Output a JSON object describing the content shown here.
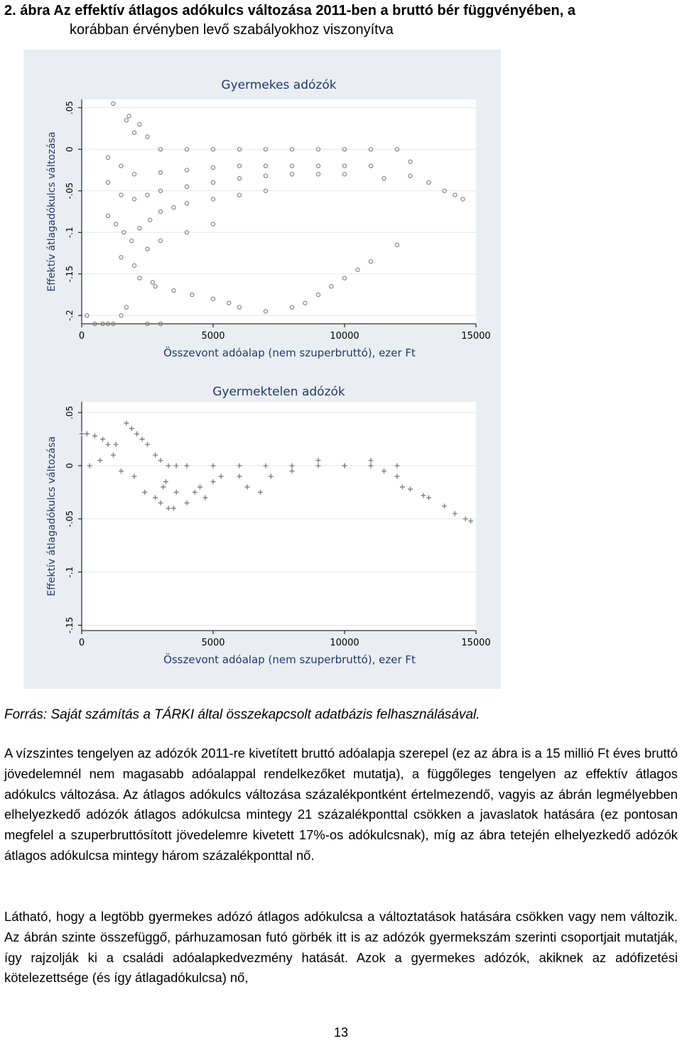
{
  "caption": {
    "line1": "2. ábra Az effektív átlagos adókulcs változása 2011-ben a bruttó bér függvényében, a",
    "line2": "korábban érvényben levő szabályokhoz viszonyítva"
  },
  "source_note": "Forrás: Saját számítás a TÁRKI által összekapcsolt adatbázis felhasználásával.",
  "paragraphs": [
    "A vízszintes tengelyen az adózók 2011-re kivetített bruttó adóalapja szerepel (ez az ábra is a 15 millió Ft éves bruttó jövedelemnél nem magasabb adóalappal rendelkezőket mutatja), a függőleges tengelyen az effektív átlagos adókulcs változása. Az átlagos adókulcs változása százalékpontként értelmezendő, vagyis az ábrán legmélyebben elhelyezkedő adózók átlagos adókulcsa mintegy 21 százalékponttal csökken a javaslatok hatására (ez pontosan megfelel a szuperbruttósított jövedelemre kivetett 17%-os adókulcsnak), míg az ábra tetején elhelyezkedő adózók átlagos adókulcsa mintegy három százalékponttal nő.",
    "Látható, hogy a legtöbb gyermekes adózó átlagos adókulcsa a változtatások hatására csökken vagy nem változik. Az ábrán szinte összefüggő, párhuzamosan futó görbék itt is az adózók gyermekszám szerinti csoportjait mutatják, így rajzolják ki a családi adóalapkedvezmény hatását. Azok a gyermekes adózók, akiknek az adófizetési kötelezettsége (és így átlagadókulcsa) nő,"
  ],
  "page_number": "13",
  "chart_data": [
    {
      "type": "scatter",
      "title": "Gyermekes adózók",
      "xlabel": "Összevont adóalap (nem szuperbruttó), ezer Ft",
      "ylabel": "Effektív átlagadókulcs változása",
      "xlim": [
        0,
        15000
      ],
      "ylim": [
        -0.21,
        0.06
      ],
      "xticks": [
        0,
        5000,
        10000,
        15000
      ],
      "xtick_labels": [
        "0",
        "5000",
        "10000",
        "15000"
      ],
      "yticks": [
        -0.2,
        -0.15,
        -0.1,
        -0.05,
        0,
        0.05
      ],
      "ytick_labels": [
        "-.2",
        "-.15",
        "-.1",
        "-.05",
        "0",
        ".05"
      ],
      "marker": "hollow-circle",
      "color": "#7a7a7a",
      "grid": true,
      "points": [
        [
          1200,
          0.055
        ],
        [
          1700,
          0.035
        ],
        [
          1800,
          0.04
        ],
        [
          2000,
          0.02
        ],
        [
          2200,
          0.03
        ],
        [
          2500,
          0.015
        ],
        [
          3000,
          0.0
        ],
        [
          4000,
          0.0
        ],
        [
          5000,
          0.0
        ],
        [
          6000,
          0.0
        ],
        [
          7000,
          0.0
        ],
        [
          8000,
          0.0
        ],
        [
          9000,
          0.0
        ],
        [
          10000,
          0.0
        ],
        [
          11000,
          0.0
        ],
        [
          12000,
          0.0
        ],
        [
          12500,
          -0.015
        ],
        [
          13200,
          -0.04
        ],
        [
          13800,
          -0.05
        ],
        [
          14200,
          -0.055
        ],
        [
          14500,
          -0.06
        ],
        [
          1000,
          -0.01
        ],
        [
          1500,
          -0.02
        ],
        [
          2000,
          -0.03
        ],
        [
          3000,
          -0.028
        ],
        [
          4000,
          -0.025
        ],
        [
          5000,
          -0.022
        ],
        [
          6000,
          -0.02
        ],
        [
          7000,
          -0.02
        ],
        [
          8000,
          -0.02
        ],
        [
          9000,
          -0.02
        ],
        [
          10000,
          -0.02
        ],
        [
          11000,
          -0.02
        ],
        [
          11500,
          -0.035
        ],
        [
          12500,
          -0.032
        ],
        [
          1000,
          -0.04
        ],
        [
          1500,
          -0.055
        ],
        [
          2000,
          -0.06
        ],
        [
          2500,
          -0.055
        ],
        [
          3000,
          -0.05
        ],
        [
          4000,
          -0.045
        ],
        [
          5000,
          -0.04
        ],
        [
          6000,
          -0.035
        ],
        [
          7000,
          -0.032
        ],
        [
          8000,
          -0.03
        ],
        [
          9000,
          -0.03
        ],
        [
          10000,
          -0.03
        ],
        [
          1000,
          -0.08
        ],
        [
          1300,
          -0.09
        ],
        [
          1600,
          -0.1
        ],
        [
          1900,
          -0.11
        ],
        [
          2200,
          -0.095
        ],
        [
          2600,
          -0.085
        ],
        [
          3000,
          -0.075
        ],
        [
          3500,
          -0.07
        ],
        [
          4000,
          -0.065
        ],
        [
          5000,
          -0.06
        ],
        [
          6000,
          -0.055
        ],
        [
          7000,
          -0.05
        ],
        [
          1500,
          -0.13
        ],
        [
          2000,
          -0.14
        ],
        [
          2500,
          -0.12
        ],
        [
          3000,
          -0.11
        ],
        [
          4000,
          -0.1
        ],
        [
          5000,
          -0.09
        ],
        [
          2200,
          -0.155
        ],
        [
          2800,
          -0.165
        ],
        [
          3500,
          -0.17
        ],
        [
          4200,
          -0.175
        ],
        [
          5000,
          -0.18
        ],
        [
          5600,
          -0.185
        ],
        [
          6000,
          -0.19
        ],
        [
          7000,
          -0.195
        ],
        [
          8000,
          -0.19
        ],
        [
          8500,
          -0.185
        ],
        [
          9000,
          -0.175
        ],
        [
          9500,
          -0.165
        ],
        [
          10000,
          -0.155
        ],
        [
          10500,
          -0.145
        ],
        [
          11000,
          -0.135
        ],
        [
          12000,
          -0.115
        ],
        [
          200,
          -0.2
        ],
        [
          500,
          -0.21
        ],
        [
          800,
          -0.21
        ],
        [
          1000,
          -0.21
        ],
        [
          1200,
          -0.21
        ],
        [
          1500,
          -0.2
        ],
        [
          2500,
          -0.21
        ],
        [
          3000,
          -0.21
        ],
        [
          2700,
          -0.16
        ],
        [
          1700,
          -0.19
        ]
      ]
    },
    {
      "type": "scatter",
      "title": "Gyermektelen adózók",
      "xlabel": "Összevont adóalap (nem szuperbruttó), ezer Ft",
      "ylabel": "Effektív átlagadókulcs változása",
      "xlim": [
        0,
        15000
      ],
      "ylim": [
        -0.155,
        0.06
      ],
      "xticks": [
        0,
        5000,
        10000,
        15000
      ],
      "xtick_labels": [
        "0",
        "5000",
        "10000",
        "15000"
      ],
      "yticks": [
        -0.15,
        -0.1,
        -0.05,
        0,
        0.05
      ],
      "ytick_labels": [
        "-.15",
        "-.1",
        "-.05",
        "0",
        ".05"
      ],
      "marker": "plus",
      "color": "#7a7a7a",
      "grid": true,
      "points": [
        [
          0,
          0.03
        ],
        [
          200,
          0.03
        ],
        [
          500,
          0.028
        ],
        [
          800,
          0.025
        ],
        [
          1000,
          0.02
        ],
        [
          1300,
          0.02
        ],
        [
          1700,
          0.04
        ],
        [
          1900,
          0.035
        ],
        [
          2100,
          0.03
        ],
        [
          2300,
          0.025
        ],
        [
          2500,
          0.02
        ],
        [
          2800,
          0.01
        ],
        [
          3000,
          0.005
        ],
        [
          3300,
          0.0
        ],
        [
          3600,
          0.0
        ],
        [
          4000,
          0.0
        ],
        [
          5000,
          0.0
        ],
        [
          6000,
          0.0
        ],
        [
          7000,
          0.0
        ],
        [
          8000,
          0.0
        ],
        [
          9000,
          0.0
        ],
        [
          10000,
          0.0
        ],
        [
          11000,
          0.0
        ],
        [
          12000,
          0.0
        ],
        [
          12200,
          -0.02
        ],
        [
          12500,
          -0.022
        ],
        [
          13200,
          -0.03
        ],
        [
          13800,
          -0.038
        ],
        [
          14200,
          -0.045
        ],
        [
          14600,
          -0.05
        ],
        [
          14800,
          -0.052
        ],
        [
          300,
          0.0
        ],
        [
          700,
          0.005
        ],
        [
          1200,
          0.01
        ],
        [
          1500,
          -0.005
        ],
        [
          2000,
          -0.01
        ],
        [
          2400,
          -0.025
        ],
        [
          2800,
          -0.03
        ],
        [
          3000,
          -0.035
        ],
        [
          3300,
          -0.04
        ],
        [
          3500,
          -0.04
        ],
        [
          4000,
          -0.035
        ],
        [
          4300,
          -0.025
        ],
        [
          4700,
          -0.03
        ],
        [
          3100,
          -0.02
        ],
        [
          3200,
          -0.015
        ],
        [
          3600,
          -0.025
        ],
        [
          4500,
          -0.02
        ],
        [
          5000,
          -0.015
        ],
        [
          5300,
          -0.01
        ],
        [
          6000,
          -0.01
        ],
        [
          6300,
          -0.02
        ],
        [
          6800,
          -0.025
        ],
        [
          7200,
          -0.01
        ],
        [
          8000,
          -0.005
        ],
        [
          9000,
          0.005
        ],
        [
          10000,
          0.0
        ],
        [
          11000,
          0.005
        ],
        [
          11500,
          -0.005
        ],
        [
          12000,
          -0.01
        ],
        [
          13000,
          -0.028
        ]
      ]
    }
  ]
}
